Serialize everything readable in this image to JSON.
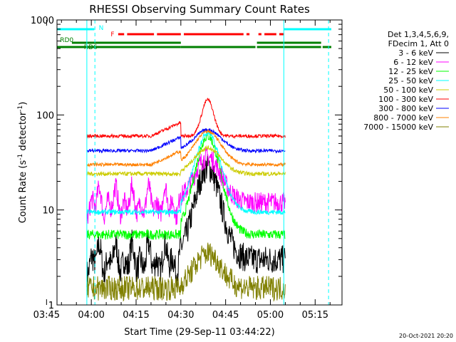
{
  "chart_data": {
    "type": "line",
    "title": "RHESSI Observing Summary Count Rates",
    "xlabel": "Start Time (29-Sep-11 03:44:22)",
    "ylabel_main": "Count Rate (s",
    "ylabel_sup": "-1",
    "ylabel_mid": " detector",
    "ylabel_sup2": "-1",
    "ylabel_end": ")",
    "yscale": "log",
    "ylim": [
      1,
      1000
    ],
    "xlim_minutes": [
      3.5,
      99
    ],
    "x_ticks": [
      {
        "m": 0,
        "label": "03:45"
      },
      {
        "m": 15,
        "label": "04:00"
      },
      {
        "m": 30,
        "label": "04:15"
      },
      {
        "m": 45,
        "label": "04:30"
      },
      {
        "m": 60,
        "label": "04:45"
      },
      {
        "m": 75,
        "label": "05:00"
      },
      {
        "m": 90,
        "label": "05:15"
      }
    ],
    "y_ticks": [
      {
        "v": 1,
        "label": "1"
      },
      {
        "v": 10,
        "label": "10"
      },
      {
        "v": 100,
        "label": "100"
      },
      {
        "v": 1000,
        "label": "1000"
      }
    ],
    "legend": {
      "header": [
        "Det 1,3,4,5,6,9,",
        "FDecim 1, Att 0"
      ],
      "position": "right"
    },
    "series": [
      {
        "name": "3 - 6 keV",
        "color": "#000000",
        "base": 3,
        "peak": 28,
        "noise": 0.35
      },
      {
        "name": "6 - 12 keV",
        "color": "#ff00ff",
        "base": 12,
        "peak": 36,
        "noise": 0.25
      },
      {
        "name": "12 - 25 keV",
        "color": "#00ff00",
        "base": 5.5,
        "peak": 60,
        "noise": 0.12
      },
      {
        "name": "25 - 50 keV",
        "color": "#00ffff",
        "base": 9.5,
        "peak": 65,
        "noise": 0.06
      },
      {
        "name": "50 - 100 keV",
        "color": "#cccc00",
        "base": 24,
        "peak": 45,
        "noise": 0.05
      },
      {
        "name": "100 - 300 keV",
        "color": "#ff0000",
        "base": 60,
        "peak": 145,
        "noise": 0.04
      },
      {
        "name": "300 - 800 keV",
        "color": "#0000ff",
        "base": 42,
        "peak": 70,
        "noise": 0.04
      },
      {
        "name": "800 - 7000 keV",
        "color": "#ff8000",
        "base": 30,
        "peak": 67,
        "noise": 0.04
      },
      {
        "name": "7000 - 15000 keV",
        "color": "#808000",
        "base": 1.5,
        "peak": 3.5,
        "noise": 0.3
      }
    ],
    "flags": [
      {
        "label": "N",
        "color": "#00ffff"
      },
      {
        "label": "F",
        "color": "#ff0000"
      },
      {
        "label": "RD0",
        "color": "#008000"
      },
      {
        "label": "RD6",
        "color": "#008000"
      }
    ],
    "data_start_m": 13.5,
    "data_end_m": 80,
    "gaps_m": [
      [
        16.5,
        16.7
      ]
    ],
    "night_lines_m": [
      13.5,
      16.2,
      79.5,
      94.5
    ],
    "peak_m": 54
  },
  "footer": {
    "date": "20-Oct-2021 20:20"
  }
}
